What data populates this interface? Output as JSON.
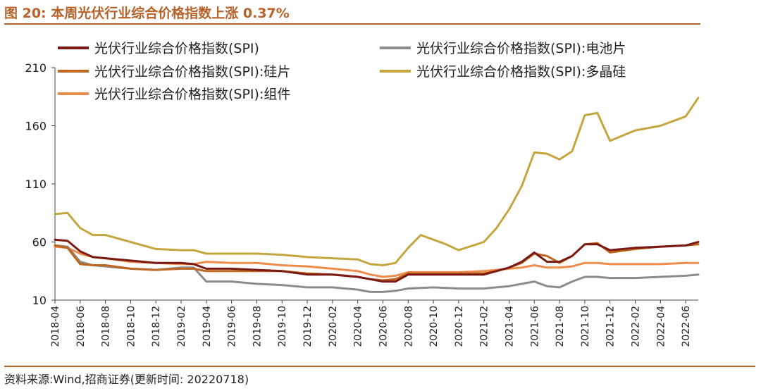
{
  "figure": {
    "title": "图 20:  本周光伏行业综合价格指数上涨 0.37%",
    "source": "资料来源:Wind,招商证券(更新时间: 20220718)"
  },
  "chart_data": {
    "type": "line",
    "title": "图 20:  本周光伏行业综合价格指数上涨 0.37%",
    "xlabel": "",
    "ylabel": "",
    "ylim": [
      10,
      210
    ],
    "yticks": [
      10,
      60,
      110,
      160,
      210
    ],
    "x_start": "2018-04",
    "x_end": "2022-07",
    "xticks": [
      "2018-04",
      "2018-06",
      "2018-08",
      "2018-10",
      "2018-12",
      "2019-02",
      "2019-04",
      "2019-06",
      "2019-08",
      "2019-10",
      "2019-12",
      "2020-02",
      "2020-04",
      "2020-06",
      "2020-08",
      "2020-10",
      "2020-12",
      "2021-02",
      "2021-04",
      "2021-06",
      "2021-08",
      "2021-10",
      "2021-12",
      "2022-02",
      "2022-04",
      "2022-06"
    ],
    "grid": false,
    "legend": "top",
    "series": [
      {
        "name": "光伏行业综合价格指数(SPI)",
        "color": "#7a1a14",
        "points": [
          [
            "2018-04",
            62
          ],
          [
            "2018-05",
            61
          ],
          [
            "2018-06",
            52
          ],
          [
            "2018-07",
            47
          ],
          [
            "2018-08",
            46
          ],
          [
            "2018-10",
            44
          ],
          [
            "2018-12",
            42
          ],
          [
            "2019-02",
            42
          ],
          [
            "2019-03",
            41
          ],
          [
            "2019-04",
            37
          ],
          [
            "2019-06",
            37
          ],
          [
            "2019-08",
            36
          ],
          [
            "2019-10",
            35
          ],
          [
            "2019-12",
            32
          ],
          [
            "2020-02",
            32
          ],
          [
            "2020-04",
            30
          ],
          [
            "2020-05",
            28
          ],
          [
            "2020-06",
            26
          ],
          [
            "2020-07",
            26
          ],
          [
            "2020-08",
            32
          ],
          [
            "2020-10",
            32
          ],
          [
            "2020-12",
            32
          ],
          [
            "2021-02",
            32
          ],
          [
            "2021-03",
            35
          ],
          [
            "2021-04",
            38
          ],
          [
            "2021-05",
            43
          ],
          [
            "2021-06",
            51
          ],
          [
            "2021-07",
            43
          ],
          [
            "2021-08",
            43
          ],
          [
            "2021-09",
            48
          ],
          [
            "2021-10",
            58
          ],
          [
            "2021-11",
            58
          ],
          [
            "2021-12",
            53
          ],
          [
            "2022-02",
            55
          ],
          [
            "2022-04",
            56
          ],
          [
            "2022-06",
            57
          ],
          [
            "2022-07",
            60
          ]
        ]
      },
      {
        "name": "光伏行业综合价格指数(SPI):电池片",
        "color": "#8c8c8c",
        "points": [
          [
            "2018-04",
            57
          ],
          [
            "2018-05",
            56
          ],
          [
            "2018-06",
            43
          ],
          [
            "2018-07",
            40
          ],
          [
            "2018-08",
            39
          ],
          [
            "2018-10",
            37
          ],
          [
            "2018-12",
            36
          ],
          [
            "2019-02",
            38
          ],
          [
            "2019-03",
            38
          ],
          [
            "2019-04",
            26
          ],
          [
            "2019-06",
            26
          ],
          [
            "2019-07",
            25
          ],
          [
            "2019-08",
            24
          ],
          [
            "2019-10",
            23
          ],
          [
            "2019-12",
            21
          ],
          [
            "2020-02",
            21
          ],
          [
            "2020-04",
            19
          ],
          [
            "2020-05",
            17
          ],
          [
            "2020-06",
            17
          ],
          [
            "2020-07",
            18
          ],
          [
            "2020-08",
            20
          ],
          [
            "2020-10",
            21
          ],
          [
            "2020-12",
            20
          ],
          [
            "2021-02",
            20
          ],
          [
            "2021-03",
            21
          ],
          [
            "2021-04",
            22
          ],
          [
            "2021-05",
            24
          ],
          [
            "2021-06",
            26
          ],
          [
            "2021-07",
            22
          ],
          [
            "2021-08",
            21
          ],
          [
            "2021-09",
            26
          ],
          [
            "2021-10",
            30
          ],
          [
            "2021-11",
            30
          ],
          [
            "2021-12",
            29
          ],
          [
            "2022-02",
            29
          ],
          [
            "2022-04",
            30
          ],
          [
            "2022-06",
            31
          ],
          [
            "2022-07",
            32
          ]
        ]
      },
      {
        "name": "光伏行业综合价格指数(SPI):硅片",
        "color": "#c0651e",
        "points": [
          [
            "2018-04",
            57
          ],
          [
            "2018-05",
            55
          ],
          [
            "2018-06",
            41
          ],
          [
            "2018-07",
            40
          ],
          [
            "2018-08",
            40
          ],
          [
            "2018-10",
            37
          ],
          [
            "2018-12",
            36
          ],
          [
            "2019-02",
            37
          ],
          [
            "2019-03",
            37
          ],
          [
            "2019-04",
            35
          ],
          [
            "2019-06",
            35
          ],
          [
            "2019-08",
            35
          ],
          [
            "2019-10",
            35
          ],
          [
            "2019-12",
            33
          ],
          [
            "2020-02",
            32
          ],
          [
            "2020-04",
            30
          ],
          [
            "2020-05",
            28
          ],
          [
            "2020-06",
            27
          ],
          [
            "2020-07",
            28
          ],
          [
            "2020-08",
            33
          ],
          [
            "2020-10",
            33
          ],
          [
            "2020-12",
            33
          ],
          [
            "2021-02",
            33
          ],
          [
            "2021-03",
            35
          ],
          [
            "2021-04",
            38
          ],
          [
            "2021-05",
            42
          ],
          [
            "2021-06",
            50
          ],
          [
            "2021-07",
            48
          ],
          [
            "2021-08",
            42
          ],
          [
            "2021-09",
            48
          ],
          [
            "2021-10",
            58
          ],
          [
            "2021-11",
            59
          ],
          [
            "2021-12",
            51
          ],
          [
            "2022-02",
            54
          ],
          [
            "2022-04",
            56
          ],
          [
            "2022-06",
            57
          ],
          [
            "2022-07",
            58
          ]
        ]
      },
      {
        "name": "光伏行业综合价格指数(SPI):多晶硅",
        "color": "#c4a63e",
        "points": [
          [
            "2018-04",
            84
          ],
          [
            "2018-05",
            85
          ],
          [
            "2018-06",
            72
          ],
          [
            "2018-07",
            66
          ],
          [
            "2018-08",
            66
          ],
          [
            "2018-10",
            60
          ],
          [
            "2018-12",
            54
          ],
          [
            "2019-02",
            53
          ],
          [
            "2019-03",
            53
          ],
          [
            "2019-04",
            50
          ],
          [
            "2019-06",
            50
          ],
          [
            "2019-08",
            50
          ],
          [
            "2019-10",
            49
          ],
          [
            "2019-12",
            47
          ],
          [
            "2020-02",
            46
          ],
          [
            "2020-04",
            45
          ],
          [
            "2020-05",
            41
          ],
          [
            "2020-06",
            40
          ],
          [
            "2020-07",
            42
          ],
          [
            "2020-08",
            55
          ],
          [
            "2020-09",
            66
          ],
          [
            "2020-10",
            62
          ],
          [
            "2020-11",
            58
          ],
          [
            "2020-12",
            53
          ],
          [
            "2021-02",
            60
          ],
          [
            "2021-03",
            72
          ],
          [
            "2021-04",
            88
          ],
          [
            "2021-05",
            108
          ],
          [
            "2021-06",
            137
          ],
          [
            "2021-07",
            136
          ],
          [
            "2021-08",
            131
          ],
          [
            "2021-09",
            138
          ],
          [
            "2021-10",
            169
          ],
          [
            "2021-11",
            171
          ],
          [
            "2021-12",
            147
          ],
          [
            "2022-02",
            156
          ],
          [
            "2022-04",
            160
          ],
          [
            "2022-06",
            168
          ],
          [
            "2022-07",
            184
          ]
        ]
      },
      {
        "name": "光伏行业综合价格指数(SPI):组件",
        "color": "#f08c4b",
        "points": [
          [
            "2018-04",
            56
          ],
          [
            "2018-05",
            55
          ],
          [
            "2018-06",
            50
          ],
          [
            "2018-07",
            47
          ],
          [
            "2018-08",
            46
          ],
          [
            "2018-10",
            43
          ],
          [
            "2018-12",
            42
          ],
          [
            "2019-02",
            41
          ],
          [
            "2019-03",
            41
          ],
          [
            "2019-04",
            43
          ],
          [
            "2019-06",
            42
          ],
          [
            "2019-08",
            42
          ],
          [
            "2019-10",
            40
          ],
          [
            "2019-12",
            39
          ],
          [
            "2020-02",
            37
          ],
          [
            "2020-04",
            35
          ],
          [
            "2020-05",
            32
          ],
          [
            "2020-06",
            30
          ],
          [
            "2020-07",
            31
          ],
          [
            "2020-08",
            34
          ],
          [
            "2020-10",
            34
          ],
          [
            "2020-12",
            34
          ],
          [
            "2021-02",
            35
          ],
          [
            "2021-03",
            36
          ],
          [
            "2021-04",
            37
          ],
          [
            "2021-05",
            38
          ],
          [
            "2021-06",
            40
          ],
          [
            "2021-07",
            38
          ],
          [
            "2021-08",
            38
          ],
          [
            "2021-09",
            39
          ],
          [
            "2021-10",
            42
          ],
          [
            "2021-11",
            42
          ],
          [
            "2021-12",
            41
          ],
          [
            "2022-02",
            41
          ],
          [
            "2022-04",
            41
          ],
          [
            "2022-06",
            42
          ],
          [
            "2022-07",
            42
          ]
        ]
      }
    ]
  }
}
